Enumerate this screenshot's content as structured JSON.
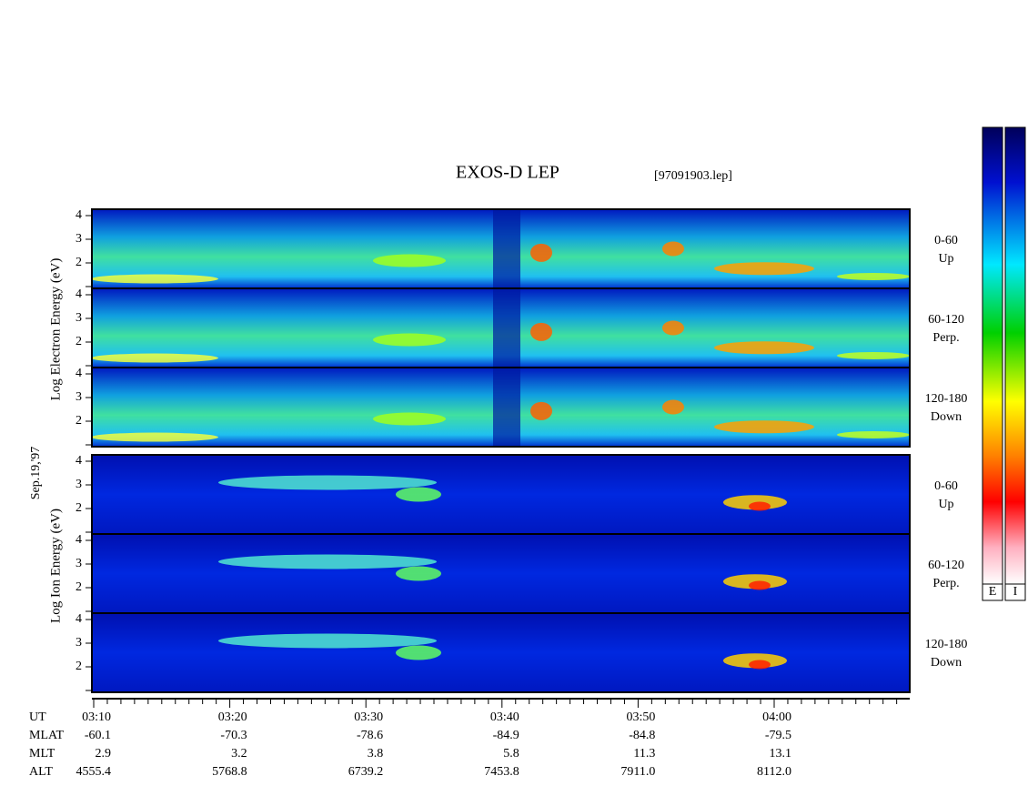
{
  "title": "EXOS-D LEP",
  "file_id": "[97091903.lep]",
  "date": "Sep.19,'97",
  "electron_axis_label": "Log Electron Energy (eV)",
  "ion_axis_label": "Log Ion Energy (eV)",
  "energy_ticks": [
    "4",
    "3",
    "2"
  ],
  "panel_labels": [
    [
      "0-60",
      "Up"
    ],
    [
      "60-120",
      "Perp."
    ],
    [
      "120-180",
      "Down"
    ]
  ],
  "colorbar_labels": [
    "E",
    "I"
  ],
  "time_table": [
    {
      "label": "UT",
      "values": [
        "03:10",
        "03:20",
        "03:30",
        "03:40",
        "03:50",
        "04:00"
      ]
    },
    {
      "label": "MLAT",
      "values": [
        "-60.1",
        "-70.3",
        "-78.6",
        "-84.9",
        "-84.8",
        "-79.5"
      ]
    },
    {
      "label": "MLT",
      "values": [
        "2.9",
        "3.2",
        "3.8",
        "5.8",
        "11.3",
        "13.1"
      ]
    },
    {
      "label": "ALT",
      "values": [
        "4555.4",
        "5768.8",
        "6739.2",
        "7453.8",
        "7911.0",
        "8112.0"
      ]
    }
  ]
}
